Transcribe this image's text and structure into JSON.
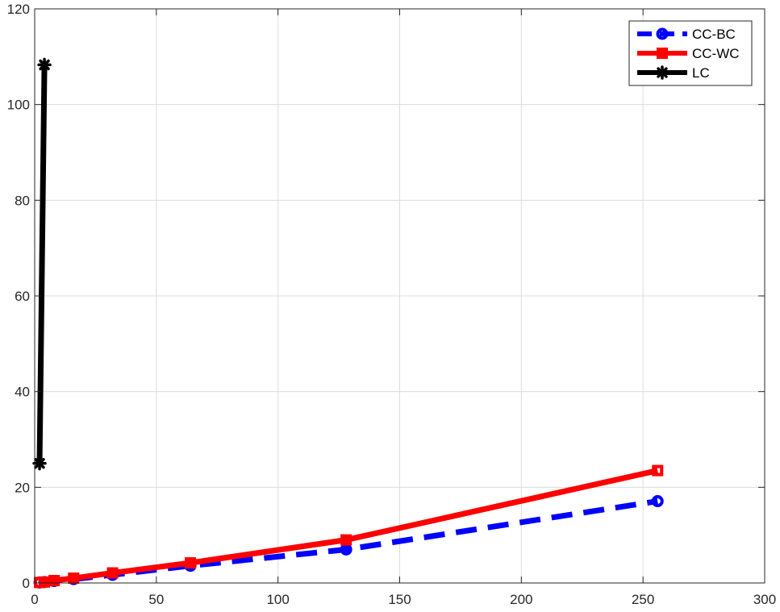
{
  "chart_data": {
    "type": "line",
    "title": "",
    "xlabel": "",
    "ylabel": "",
    "xlim": [
      0,
      300
    ],
    "ylim": [
      0,
      120
    ],
    "xticks": [
      0,
      50,
      100,
      150,
      200,
      250,
      300
    ],
    "yticks": [
      0,
      20,
      40,
      60,
      80,
      100,
      120
    ],
    "xtick_labels": [
      "0",
      "50",
      "100",
      "150",
      "200",
      "250",
      "300"
    ],
    "ytick_labels": [
      "0",
      "20",
      "40",
      "60",
      "80",
      "100",
      "120"
    ],
    "grid": true,
    "legend_position": "top-right",
    "series": [
      {
        "name": "CC-BC",
        "color": "#0000ff",
        "line_style": "dashed",
        "marker": "circle",
        "x": [
          2,
          4,
          8,
          16,
          32,
          64,
          128,
          256
        ],
        "y": [
          0.1,
          0.2,
          0.4,
          0.8,
          1.7,
          3.6,
          7.0,
          17.1
        ]
      },
      {
        "name": "CC-WC",
        "color": "#ff0000",
        "line_style": "solid",
        "marker": "square",
        "x": [
          2,
          4,
          8,
          16,
          32,
          64,
          128,
          256
        ],
        "y": [
          0.1,
          0.2,
          0.5,
          1.0,
          2.1,
          4.2,
          9.0,
          23.5
        ]
      },
      {
        "name": "LC",
        "color": "#000000",
        "line_style": "solid",
        "marker": "asterisk",
        "x": [
          2,
          4
        ],
        "y": [
          25.0,
          108.3
        ]
      }
    ]
  }
}
